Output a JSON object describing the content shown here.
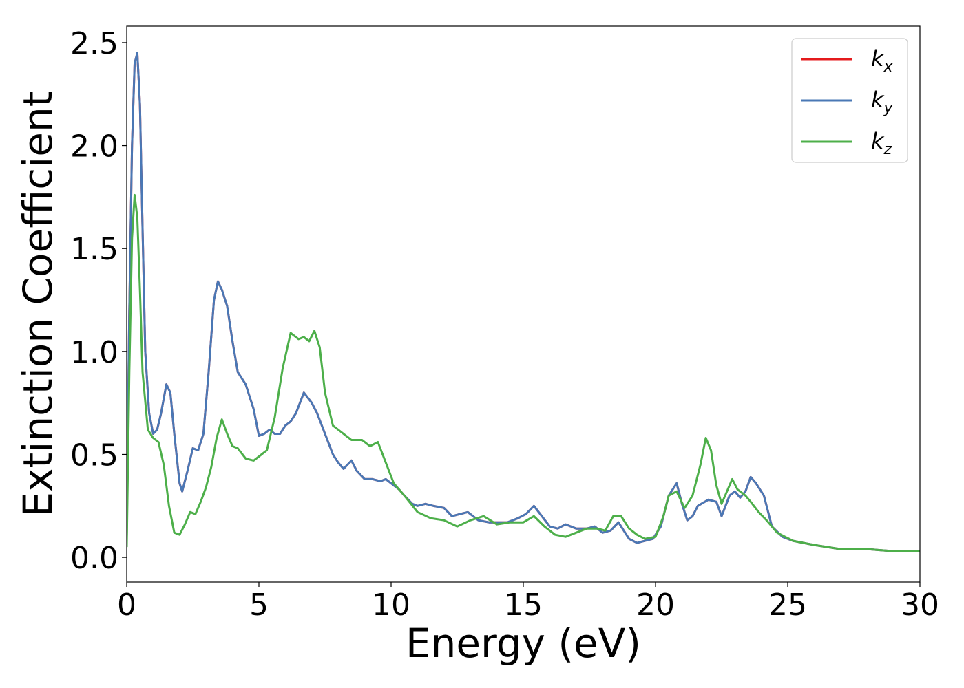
{
  "chart_data": {
    "type": "line",
    "xlabel": "Energy (eV)",
    "ylabel": "Extinction Coefficient",
    "xlim": [
      0,
      30
    ],
    "ylim": [
      -0.12,
      2.58
    ],
    "xticks": [
      0,
      5,
      10,
      15,
      20,
      25,
      30
    ],
    "xtick_labels": [
      "0",
      "5",
      "10",
      "15",
      "20",
      "25",
      "30"
    ],
    "yticks": [
      0.0,
      0.5,
      1.0,
      1.5,
      2.0,
      2.5
    ],
    "ytick_labels": [
      "0.0",
      "0.5",
      "1.0",
      "1.5",
      "2.0",
      "2.5"
    ],
    "grid": false,
    "legend_position": "top-right",
    "series": [
      {
        "name": "k",
        "subscript": "x",
        "color": "#e41a1c",
        "x": [
          0,
          0.1,
          0.2,
          0.3,
          0.4,
          0.5,
          0.6,
          0.7,
          0.85,
          1.0,
          1.15,
          1.3,
          1.5,
          1.65,
          1.8,
          2.0,
          2.1,
          2.3,
          2.5,
          2.7,
          2.9,
          3.1,
          3.3,
          3.45,
          3.6,
          3.8,
          4.0,
          4.2,
          4.5,
          4.8,
          5.0,
          5.2,
          5.4,
          5.6,
          5.8,
          6.0,
          6.2,
          6.4,
          6.7,
          7.0,
          7.2,
          7.5,
          7.8,
          8.0,
          8.2,
          8.5,
          8.7,
          9.0,
          9.3,
          9.6,
          9.8,
          10.0,
          10.3,
          10.5,
          10.8,
          11.0,
          11.3,
          11.6,
          12.0,
          12.3,
          12.6,
          12.9,
          13.3,
          13.7,
          14.0,
          14.4,
          14.8,
          15.1,
          15.4,
          15.7,
          16.0,
          16.3,
          16.6,
          17.0,
          17.4,
          17.7,
          18.0,
          18.3,
          18.6,
          19.0,
          19.3,
          19.6,
          19.9,
          20.2,
          20.5,
          20.8,
          21.0,
          21.2,
          21.4,
          21.6,
          22.0,
          22.3,
          22.5,
          22.8,
          23.0,
          23.2,
          23.4,
          23.6,
          23.8,
          24.1,
          24.4,
          24.8,
          25.2,
          26.0,
          27.0,
          28.0,
          29.0,
          30.0
        ],
        "y": [
          0.1,
          1.2,
          2.0,
          2.4,
          2.45,
          2.2,
          1.6,
          1.0,
          0.7,
          0.6,
          0.62,
          0.7,
          0.84,
          0.8,
          0.6,
          0.36,
          0.32,
          0.42,
          0.53,
          0.52,
          0.6,
          0.9,
          1.25,
          1.34,
          1.3,
          1.22,
          1.05,
          0.9,
          0.84,
          0.72,
          0.59,
          0.6,
          0.62,
          0.6,
          0.6,
          0.64,
          0.66,
          0.7,
          0.8,
          0.75,
          0.7,
          0.6,
          0.5,
          0.46,
          0.43,
          0.47,
          0.42,
          0.38,
          0.38,
          0.37,
          0.38,
          0.36,
          0.33,
          0.3,
          0.26,
          0.25,
          0.26,
          0.25,
          0.24,
          0.2,
          0.21,
          0.22,
          0.18,
          0.17,
          0.17,
          0.17,
          0.19,
          0.21,
          0.25,
          0.2,
          0.15,
          0.14,
          0.16,
          0.14,
          0.14,
          0.15,
          0.12,
          0.13,
          0.17,
          0.09,
          0.07,
          0.08,
          0.09,
          0.15,
          0.3,
          0.36,
          0.26,
          0.18,
          0.2,
          0.25,
          0.28,
          0.27,
          0.2,
          0.3,
          0.32,
          0.29,
          0.32,
          0.39,
          0.36,
          0.3,
          0.15,
          0.1,
          0.08,
          0.06,
          0.04,
          0.04,
          0.03,
          0.03
        ]
      },
      {
        "name": "k",
        "subscript": "y",
        "color": "#4a78b5",
        "x": [
          0,
          0.1,
          0.2,
          0.3,
          0.4,
          0.5,
          0.6,
          0.7,
          0.85,
          1.0,
          1.15,
          1.3,
          1.5,
          1.65,
          1.8,
          2.0,
          2.1,
          2.3,
          2.5,
          2.7,
          2.9,
          3.1,
          3.3,
          3.45,
          3.6,
          3.8,
          4.0,
          4.2,
          4.5,
          4.8,
          5.0,
          5.2,
          5.4,
          5.6,
          5.8,
          6.0,
          6.2,
          6.4,
          6.7,
          7.0,
          7.2,
          7.5,
          7.8,
          8.0,
          8.2,
          8.5,
          8.7,
          9.0,
          9.3,
          9.6,
          9.8,
          10.0,
          10.3,
          10.5,
          10.8,
          11.0,
          11.3,
          11.6,
          12.0,
          12.3,
          12.6,
          12.9,
          13.3,
          13.7,
          14.0,
          14.4,
          14.8,
          15.1,
          15.4,
          15.7,
          16.0,
          16.3,
          16.6,
          17.0,
          17.4,
          17.7,
          18.0,
          18.3,
          18.6,
          19.0,
          19.3,
          19.6,
          19.9,
          20.2,
          20.5,
          20.8,
          21.0,
          21.2,
          21.4,
          21.6,
          22.0,
          22.3,
          22.5,
          22.8,
          23.0,
          23.2,
          23.4,
          23.6,
          23.8,
          24.1,
          24.4,
          24.8,
          25.2,
          26.0,
          27.0,
          28.0,
          29.0,
          30.0
        ],
        "y": [
          0.1,
          1.2,
          2.0,
          2.4,
          2.45,
          2.2,
          1.6,
          1.0,
          0.7,
          0.6,
          0.62,
          0.7,
          0.84,
          0.8,
          0.6,
          0.36,
          0.32,
          0.42,
          0.53,
          0.52,
          0.6,
          0.9,
          1.25,
          1.34,
          1.3,
          1.22,
          1.05,
          0.9,
          0.84,
          0.72,
          0.59,
          0.6,
          0.62,
          0.6,
          0.6,
          0.64,
          0.66,
          0.7,
          0.8,
          0.75,
          0.7,
          0.6,
          0.5,
          0.46,
          0.43,
          0.47,
          0.42,
          0.38,
          0.38,
          0.37,
          0.38,
          0.36,
          0.33,
          0.3,
          0.26,
          0.25,
          0.26,
          0.25,
          0.24,
          0.2,
          0.21,
          0.22,
          0.18,
          0.17,
          0.17,
          0.17,
          0.19,
          0.21,
          0.25,
          0.2,
          0.15,
          0.14,
          0.16,
          0.14,
          0.14,
          0.15,
          0.12,
          0.13,
          0.17,
          0.09,
          0.07,
          0.08,
          0.09,
          0.15,
          0.3,
          0.36,
          0.26,
          0.18,
          0.2,
          0.25,
          0.28,
          0.27,
          0.2,
          0.3,
          0.32,
          0.29,
          0.32,
          0.39,
          0.36,
          0.3,
          0.15,
          0.1,
          0.08,
          0.06,
          0.04,
          0.04,
          0.03,
          0.03
        ]
      },
      {
        "name": "k",
        "subscript": "z",
        "color": "#4daf4a",
        "x": [
          0,
          0.1,
          0.2,
          0.3,
          0.4,
          0.5,
          0.6,
          0.8,
          1.0,
          1.2,
          1.4,
          1.6,
          1.8,
          2.0,
          2.2,
          2.4,
          2.6,
          2.8,
          3.0,
          3.2,
          3.4,
          3.6,
          3.8,
          4.0,
          4.2,
          4.5,
          4.8,
          5.0,
          5.3,
          5.6,
          5.9,
          6.2,
          6.5,
          6.7,
          6.9,
          7.1,
          7.3,
          7.5,
          7.8,
          8.1,
          8.5,
          8.9,
          9.2,
          9.5,
          9.8,
          10.1,
          10.5,
          11.0,
          11.5,
          12.0,
          12.5,
          13.0,
          13.5,
          14.0,
          14.5,
          15.0,
          15.4,
          15.8,
          16.2,
          16.6,
          17.0,
          17.4,
          17.8,
          18.1,
          18.4,
          18.7,
          19.0,
          19.3,
          19.6,
          20.0,
          20.3,
          20.5,
          20.8,
          21.1,
          21.4,
          21.7,
          21.9,
          22.1,
          22.3,
          22.5,
          22.7,
          22.9,
          23.1,
          23.4,
          23.6,
          23.9,
          24.2,
          24.6,
          25.2,
          26.0,
          27.0,
          28.0,
          29.0,
          30.0
        ],
        "y": [
          0.05,
          0.9,
          1.55,
          1.76,
          1.65,
          1.3,
          0.9,
          0.62,
          0.58,
          0.56,
          0.45,
          0.25,
          0.12,
          0.11,
          0.16,
          0.22,
          0.21,
          0.27,
          0.34,
          0.44,
          0.58,
          0.67,
          0.6,
          0.54,
          0.53,
          0.48,
          0.47,
          0.49,
          0.52,
          0.68,
          0.92,
          1.09,
          1.06,
          1.07,
          1.05,
          1.1,
          1.02,
          0.8,
          0.64,
          0.61,
          0.57,
          0.57,
          0.54,
          0.56,
          0.46,
          0.36,
          0.3,
          0.22,
          0.19,
          0.18,
          0.15,
          0.18,
          0.2,
          0.16,
          0.17,
          0.17,
          0.2,
          0.15,
          0.11,
          0.1,
          0.12,
          0.14,
          0.14,
          0.13,
          0.2,
          0.2,
          0.14,
          0.11,
          0.09,
          0.1,
          0.2,
          0.3,
          0.32,
          0.24,
          0.3,
          0.45,
          0.58,
          0.52,
          0.35,
          0.26,
          0.32,
          0.38,
          0.33,
          0.3,
          0.27,
          0.22,
          0.18,
          0.12,
          0.08,
          0.06,
          0.04,
          0.04,
          0.03,
          0.03
        ]
      }
    ]
  }
}
